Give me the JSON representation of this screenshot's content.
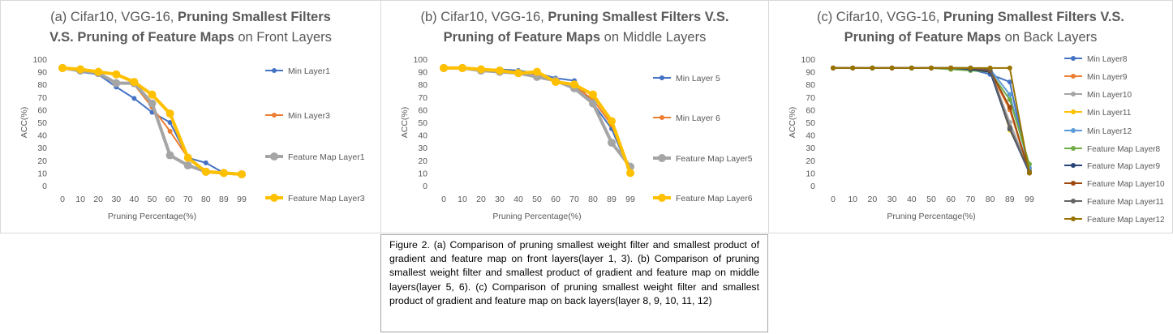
{
  "chart_data": [
    {
      "type": "line",
      "title_parts": [
        {
          "text": "(a) Cifar10, VGG-16, ",
          "bold": false
        },
        {
          "text": "Pruning Smallest Filters",
          "bold": true
        },
        {
          "text": "\n",
          "bold": false
        },
        {
          "text": "V.S. Pruning of Feature Maps",
          "bold": true
        },
        {
          "text": " on Front Layers",
          "bold": false
        }
      ],
      "xlabel": "Pruning Percentage(%)",
      "ylabel": "ACC(%)",
      "categories": [
        "0",
        "10",
        "20",
        "30",
        "40",
        "50",
        "60",
        "70",
        "80",
        "89",
        "99"
      ],
      "yticks": [
        "0",
        "10",
        "20",
        "30",
        "40",
        "50",
        "60",
        "70",
        "80",
        "90",
        "100"
      ],
      "ylim": [
        0,
        100
      ],
      "series": [
        {
          "name": "Min Layer1",
          "color": "#4472c4",
          "width": 2,
          "values": [
            93,
            90,
            88,
            78,
            69,
            58,
            50,
            22,
            18,
            10,
            9
          ]
        },
        {
          "name": "Min Layer3",
          "color": "#ed7d31",
          "width": 2,
          "values": [
            93,
            91,
            89,
            82,
            80,
            62,
            43,
            22,
            11,
            10,
            9
          ]
        },
        {
          "name": "Feature Map Layer1",
          "color": "#a5a5a5",
          "width": 4,
          "values": [
            93,
            91,
            89,
            81,
            81,
            65,
            24,
            16,
            11,
            10,
            9
          ]
        },
        {
          "name": "Feature Map Layer3",
          "color": "#ffc000",
          "width": 4,
          "values": [
            93,
            92,
            90,
            88,
            82,
            72,
            57,
            22,
            11,
            10,
            9
          ]
        }
      ],
      "legend": "right"
    },
    {
      "type": "line",
      "title_parts": [
        {
          "text": "(b) Cifar10, VGG-16, ",
          "bold": false
        },
        {
          "text": "Pruning Smallest Filters V.S.",
          "bold": true
        },
        {
          "text": "\n",
          "bold": false
        },
        {
          "text": "Pruning of Feature Maps",
          "bold": true
        },
        {
          "text": " on Middle Layers",
          "bold": false
        }
      ],
      "xlabel": "Pruning Percentage(%)",
      "ylabel": "ACC(%)",
      "categories": [
        "0",
        "10",
        "20",
        "30",
        "40",
        "50",
        "60",
        "70",
        "80",
        "89",
        "99"
      ],
      "yticks": [
        "0",
        "10",
        "20",
        "30",
        "40",
        "50",
        "60",
        "70",
        "80",
        "90",
        "100"
      ],
      "ylim": [
        0,
        100
      ],
      "series": [
        {
          "name": "Min Layer 5",
          "color": "#4472c4",
          "width": 2,
          "values": [
            93,
            93,
            92,
            92,
            91,
            89,
            85,
            83,
            65,
            45,
            10
          ]
        },
        {
          "name": "Min Layer 6",
          "color": "#ed7d31",
          "width": 2,
          "values": [
            93,
            93,
            92,
            91,
            90,
            88,
            83,
            79,
            68,
            48,
            12
          ]
        },
        {
          "name": "Feature Map Layer5",
          "color": "#a5a5a5",
          "width": 4,
          "values": [
            93,
            93,
            91,
            90,
            89,
            86,
            83,
            77,
            65,
            34,
            15
          ]
        },
        {
          "name": "Feature Map Layer6",
          "color": "#ffc000",
          "width": 4,
          "values": [
            93,
            93,
            92,
            91,
            89,
            90,
            82,
            80,
            72,
            51,
            10
          ]
        }
      ],
      "legend": "right"
    },
    {
      "type": "line",
      "title_parts": [
        {
          "text": "(c) Cifar10, VGG-16, ",
          "bold": false
        },
        {
          "text": "Pruning Smallest Filters V.S.",
          "bold": true
        },
        {
          "text": "\n",
          "bold": false
        },
        {
          "text": "Pruning of Feature Maps",
          "bold": true
        },
        {
          "text": " on Back Layers",
          "bold": false
        }
      ],
      "xlabel": "Pruning Percentage(%)",
      "ylabel": "ACC(%)",
      "categories": [
        "0",
        "10",
        "20",
        "30",
        "40",
        "50",
        "60",
        "70",
        "80",
        "89",
        "99"
      ],
      "yticks": [
        "0",
        "10",
        "20",
        "30",
        "40",
        "50",
        "60",
        "70",
        "80",
        "90",
        "100"
      ],
      "ylim": [
        0,
        100
      ],
      "series": [
        {
          "name": "Min Layer8",
          "color": "#4472c4",
          "width": 2,
          "values": [
            93,
            93,
            93,
            93,
            93,
            93,
            93,
            92,
            88,
            82,
            10
          ]
        },
        {
          "name": "Min Layer9",
          "color": "#ed7d31",
          "width": 2,
          "values": [
            93,
            93,
            93,
            93,
            93,
            93,
            93,
            92,
            90,
            60,
            10
          ]
        },
        {
          "name": "Min Layer10",
          "color": "#a5a5a5",
          "width": 2,
          "values": [
            93,
            93,
            93,
            93,
            93,
            93,
            92,
            92,
            91,
            50,
            12
          ]
        },
        {
          "name": "Min Layer11",
          "color": "#ffc000",
          "width": 2,
          "values": [
            93,
            93,
            93,
            93,
            93,
            93,
            93,
            93,
            92,
            44,
            13
          ]
        },
        {
          "name": "Min Layer12",
          "color": "#5b9bd5",
          "width": 2,
          "values": [
            93,
            93,
            93,
            93,
            93,
            93,
            93,
            93,
            92,
            72,
            14
          ]
        },
        {
          "name": "Feature Map Layer8",
          "color": "#70ad47",
          "width": 2,
          "values": [
            93,
            93,
            93,
            93,
            93,
            93,
            92,
            91,
            90,
            68,
            17
          ]
        },
        {
          "name": "Feature Map Layer9",
          "color": "#264478",
          "width": 2,
          "values": [
            93,
            93,
            93,
            93,
            93,
            93,
            93,
            92,
            90,
            45,
            10
          ]
        },
        {
          "name": "Feature Map Layer10",
          "color": "#9e480e",
          "width": 2,
          "values": [
            93,
            93,
            93,
            93,
            93,
            93,
            93,
            93,
            91,
            62,
            10
          ]
        },
        {
          "name": "Feature Map Layer11",
          "color": "#636363",
          "width": 2,
          "values": [
            93,
            93,
            93,
            93,
            93,
            93,
            93,
            93,
            92,
            46,
            11
          ]
        },
        {
          "name": "Feature Map Layer12",
          "color": "#997300",
          "width": 2,
          "values": [
            93,
            93,
            93,
            93,
            93,
            93,
            93,
            93,
            93,
            93,
            10
          ]
        }
      ],
      "legend": "right"
    }
  ],
  "caption": "Figure 2. (a) Comparison of pruning smallest weight filter and smallest product of gradient and feature map on front layers(layer 1, 3). (b) Comparison of pruning smallest weight filter and smallest product of gradient and feature map on middle layers(layer 5, 6). (c) Comparison of pruning smallest weight filter and smallest product of gradient and feature map on back layers(layer 8, 9, 10, 11, 12)"
}
